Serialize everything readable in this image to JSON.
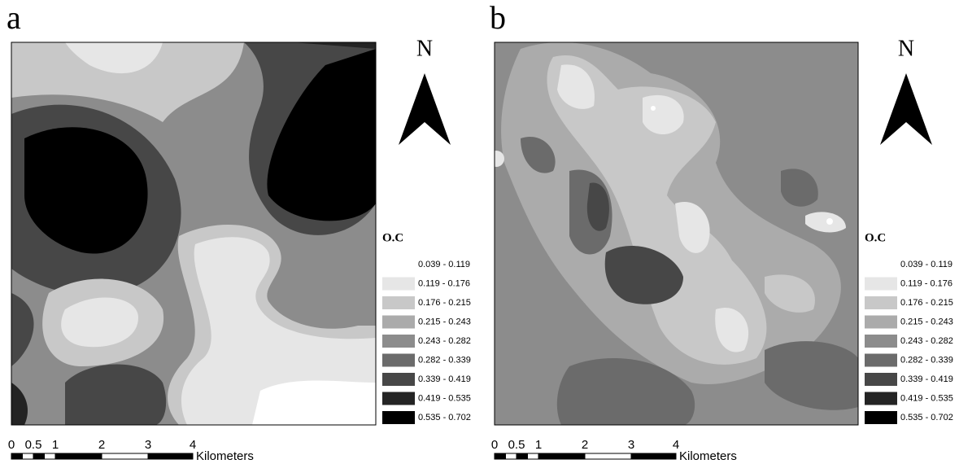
{
  "panels": [
    {
      "label": "a",
      "north": "N",
      "legend": {
        "title": "O.C",
        "items": [
          {
            "label": "0.039 - 0.119",
            "color": "#ffffff"
          },
          {
            "label": "0.119 - 0.176",
            "color": "#e6e6e6"
          },
          {
            "label": "0.176 - 0.215",
            "color": "#c8c8c8"
          },
          {
            "label": "0.215 - 0.243",
            "color": "#ababab"
          },
          {
            "label": "0.243 - 0.282",
            "color": "#8c8c8c"
          },
          {
            "label": "0.282 - 0.339",
            "color": "#6b6b6b"
          },
          {
            "label": "0.339 - 0.419",
            "color": "#474747"
          },
          {
            "label": "0.419 - 0.535",
            "color": "#242424"
          },
          {
            "label": "0.535 - 0.702",
            "color": "#000000"
          }
        ]
      },
      "scale": {
        "ticks": [
          "0",
          "0.5",
          "1",
          "2",
          "3",
          "4"
        ],
        "unit": "Kilometers"
      }
    },
    {
      "label": "b",
      "north": "N",
      "legend": {
        "title": "O.C",
        "items": [
          {
            "label": "0.039 - 0.119",
            "color": "#ffffff"
          },
          {
            "label": "0.119 - 0.176",
            "color": "#e6e6e6"
          },
          {
            "label": "0.176 - 0.215",
            "color": "#c8c8c8"
          },
          {
            "label": "0.215 - 0.243",
            "color": "#ababab"
          },
          {
            "label": "0.243 - 0.282",
            "color": "#8c8c8c"
          },
          {
            "label": "0.282 - 0.339",
            "color": "#6b6b6b"
          },
          {
            "label": "0.339 - 0.419",
            "color": "#474747"
          },
          {
            "label": "0.419 - 0.535",
            "color": "#242424"
          },
          {
            "label": "0.535 - 0.702",
            "color": "#000000"
          }
        ]
      },
      "scale": {
        "ticks": [
          "0",
          "0.5",
          "1",
          "2",
          "3",
          "4"
        ],
        "unit": "Kilometers"
      }
    }
  ]
}
